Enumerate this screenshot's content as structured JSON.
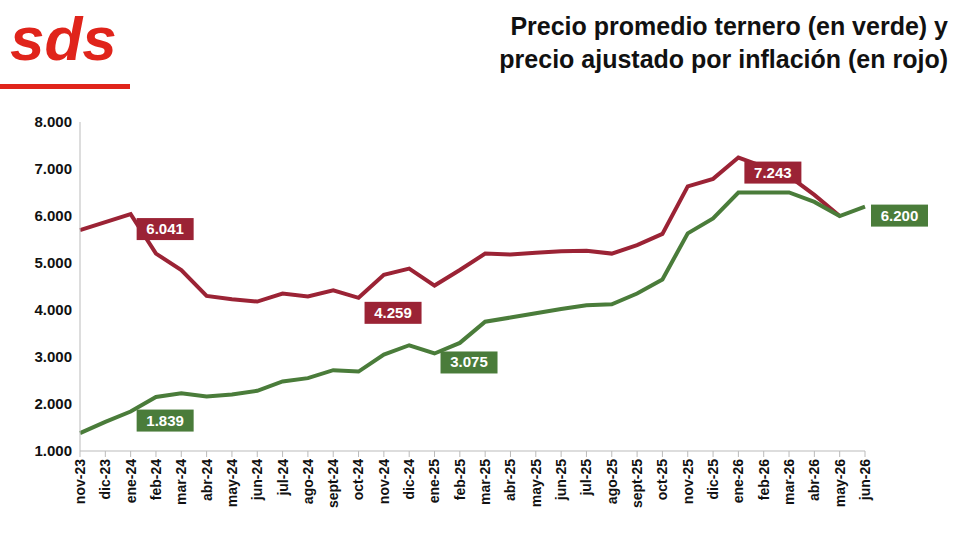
{
  "chart_data": {
    "type": "line",
    "title": "Precio promedio ternero (en verde) y\nprecio ajustado por inflación (en rojo)",
    "logo": "sds",
    "categories": [
      "nov-23",
      "dic-23",
      "ene-24",
      "feb-24",
      "mar-24",
      "abr-24",
      "may-24",
      "jun-24",
      "jul-24",
      "ago-24",
      "sept-24",
      "oct-24",
      "nov-24",
      "dic-24",
      "ene-25",
      "feb-25",
      "mar-25",
      "abr-25",
      "may-25",
      "jun-25",
      "jul-25",
      "ago-25",
      "sept-25",
      "oct-25",
      "nov-25",
      "dic-25",
      "ene-26",
      "feb-26",
      "mar-26",
      "abr-26",
      "may-26",
      "jun-26"
    ],
    "series": [
      {
        "name": "precio ajustado por inflación",
        "color": "#9b2335",
        "data_labels": true,
        "values": [
          5700,
          5870,
          6041,
          5200,
          4850,
          4300,
          4230,
          4180,
          4350,
          4290,
          4420,
          4259,
          4750,
          4880,
          4520,
          4850,
          5200,
          5180,
          5220,
          5250,
          5260,
          5200,
          5380,
          5620,
          6630,
          6790,
          7243,
          7050,
          6850,
          6450,
          6000,
          null
        ],
        "value_labels": [
          null,
          null,
          "6.041",
          null,
          null,
          null,
          null,
          null,
          null,
          null,
          null,
          "4.259",
          null,
          null,
          null,
          null,
          null,
          null,
          null,
          null,
          null,
          null,
          null,
          null,
          null,
          null,
          "7.243",
          null,
          null,
          null,
          null,
          null
        ]
      },
      {
        "name": "precio promedio ternero",
        "color": "#4a7c3a",
        "data_labels": true,
        "values": [
          1380,
          1620,
          1839,
          2150,
          2230,
          2160,
          2200,
          2280,
          2480,
          2550,
          2720,
          2690,
          3050,
          3250,
          3075,
          3300,
          3750,
          3840,
          3930,
          4020,
          4100,
          4120,
          4350,
          4650,
          5630,
          5950,
          6500,
          6500,
          6500,
          6300,
          6000,
          6200
        ],
        "value_labels": [
          null,
          null,
          "1.839",
          null,
          null,
          null,
          null,
          null,
          null,
          null,
          null,
          null,
          null,
          null,
          "3.075",
          null,
          null,
          null,
          null,
          null,
          null,
          null,
          null,
          null,
          null,
          null,
          null,
          null,
          null,
          null,
          null,
          "6.200"
        ]
      }
    ],
    "ylim": [
      1000,
      8000
    ],
    "yticks": [
      {
        "value": 1000,
        "label": "1.000"
      },
      {
        "value": 2000,
        "label": "2.000"
      },
      {
        "value": 3000,
        "label": "3.000"
      },
      {
        "value": 4000,
        "label": "4.000"
      },
      {
        "value": 5000,
        "label": "5.000"
      },
      {
        "value": 6000,
        "label": "6.000"
      },
      {
        "value": 7000,
        "label": "7.000"
      },
      {
        "value": 8000,
        "label": "8.000"
      }
    ],
    "grid": false,
    "legend": false
  }
}
